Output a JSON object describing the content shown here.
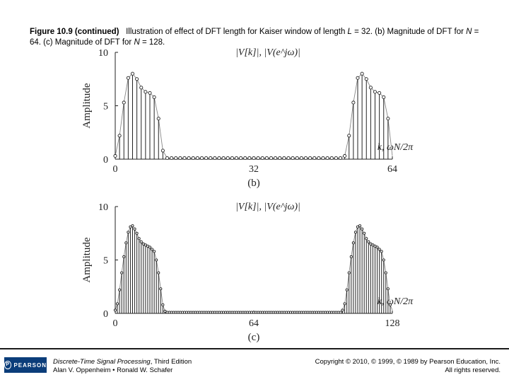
{
  "caption": {
    "label": "Figure 10.9 (continued)",
    "text_a": "Illustration of effect of DFT length for Kaiser window of length ",
    "L": "L",
    "text_b": " = 32. (b) Magnitude of DFT for ",
    "N1": "N",
    "text_c": " = 64. (c) Magnitude of DFT for ",
    "N2": "N",
    "text_d": " = 128."
  },
  "footer": {
    "logo": "PEARSON",
    "book_title": "Discrete-Time Signal Processing",
    "book_edition": ", Third Edition",
    "authors": "Alan V. Oppenheim • Ronald W. Schafer",
    "copyright": "Copyright © 2010, © 1999, © 1989 by Pearson Education, Inc.",
    "rights": "All rights reserved."
  },
  "chart_data": [
    {
      "type": "stem",
      "panel_label": "(b)",
      "legend": "|V[k]|, |V(e^jω)|",
      "xlabel": "k, ωN/2π",
      "ylabel": "Amplitude",
      "N": 64,
      "xlim": [
        0,
        64
      ],
      "ylim": [
        0,
        10
      ],
      "xticks": [
        0,
        32,
        64
      ],
      "yticks": [
        0,
        5,
        10
      ],
      "x": [
        0,
        1,
        2,
        3,
        4,
        5,
        6,
        7,
        8,
        9,
        10,
        11,
        12,
        13,
        14,
        15,
        16,
        17,
        18,
        19,
        20,
        21,
        22,
        23,
        24,
        25,
        26,
        27,
        28,
        29,
        30,
        31,
        32,
        33,
        34,
        35,
        36,
        37,
        38,
        39,
        40,
        41,
        42,
        43,
        44,
        45,
        46,
        47,
        48,
        49,
        50,
        51,
        52,
        53,
        54,
        55,
        56,
        57,
        58,
        59,
        60,
        61,
        62,
        63
      ],
      "values": [
        0.3,
        2.2,
        5.3,
        7.6,
        8.0,
        7.5,
        6.7,
        6.3,
        6.2,
        5.8,
        3.8,
        0.8,
        0.1,
        0.1,
        0.1,
        0.1,
        0.1,
        0.1,
        0.1,
        0.1,
        0.1,
        0.1,
        0.1,
        0.1,
        0.1,
        0.1,
        0.1,
        0.1,
        0.1,
        0.1,
        0.1,
        0.1,
        0.1,
        0.1,
        0.1,
        0.1,
        0.1,
        0.1,
        0.1,
        0.1,
        0.1,
        0.1,
        0.1,
        0.1,
        0.1,
        0.1,
        0.1,
        0.1,
        0.1,
        0.1,
        0.1,
        0.1,
        0.1,
        0.3,
        2.2,
        5.3,
        7.6,
        8.0,
        7.5,
        6.7,
        6.3,
        6.2,
        5.8,
        3.8
      ]
    },
    {
      "type": "stem",
      "panel_label": "(c)",
      "legend": "|V[k]|, |V(e^jω)|",
      "xlabel": "k, ωN/2π",
      "ylabel": "Amplitude",
      "N": 128,
      "xlim": [
        0,
        128
      ],
      "ylim": [
        0,
        10
      ],
      "xticks": [
        0,
        64,
        128
      ],
      "yticks": [
        0,
        5,
        10
      ],
      "x": [
        0,
        1,
        2,
        3,
        4,
        5,
        6,
        7,
        8,
        9,
        10,
        11,
        12,
        13,
        14,
        15,
        16,
        17,
        18,
        19,
        20,
        21,
        22,
        23,
        24,
        25,
        26,
        27,
        28,
        29,
        30,
        31,
        32,
        33,
        34,
        35,
        36,
        37,
        38,
        39,
        40,
        41,
        42,
        43,
        44,
        45,
        46,
        47,
        48,
        49,
        50,
        51,
        52,
        53,
        54,
        55,
        56,
        57,
        58,
        59,
        60,
        61,
        62,
        63,
        64,
        65,
        66,
        67,
        68,
        69,
        70,
        71,
        72,
        73,
        74,
        75,
        76,
        77,
        78,
        79,
        80,
        81,
        82,
        83,
        84,
        85,
        86,
        87,
        88,
        89,
        90,
        91,
        92,
        93,
        94,
        95,
        96,
        97,
        98,
        99,
        100,
        101,
        102,
        103,
        104,
        105,
        106,
        107,
        108,
        109,
        110,
        111,
        112,
        113,
        114,
        115,
        116,
        117,
        118,
        119,
        120,
        121,
        122,
        123,
        124,
        125,
        126,
        127
      ],
      "values": [
        0.3,
        0.9,
        2.2,
        3.8,
        5.3,
        6.6,
        7.6,
        8.1,
        8.2,
        7.9,
        7.5,
        7.0,
        6.7,
        6.5,
        6.4,
        6.3,
        6.2,
        6.0,
        5.8,
        5.0,
        3.8,
        2.3,
        0.8,
        0.2,
        0.1,
        0.1,
        0.1,
        0.1,
        0.1,
        0.1,
        0.1,
        0.1,
        0.1,
        0.1,
        0.1,
        0.1,
        0.1,
        0.1,
        0.1,
        0.1,
        0.1,
        0.1,
        0.1,
        0.1,
        0.1,
        0.1,
        0.1,
        0.1,
        0.1,
        0.1,
        0.1,
        0.1,
        0.1,
        0.1,
        0.1,
        0.1,
        0.1,
        0.1,
        0.1,
        0.1,
        0.1,
        0.1,
        0.1,
        0.1,
        0.1,
        0.1,
        0.1,
        0.1,
        0.1,
        0.1,
        0.1,
        0.1,
        0.1,
        0.1,
        0.1,
        0.1,
        0.1,
        0.1,
        0.1,
        0.1,
        0.1,
        0.1,
        0.1,
        0.1,
        0.1,
        0.1,
        0.1,
        0.1,
        0.1,
        0.1,
        0.1,
        0.1,
        0.1,
        0.1,
        0.1,
        0.1,
        0.1,
        0.1,
        0.1,
        0.1,
        0.1,
        0.1,
        0.1,
        0.1,
        0.1,
        0.3,
        0.9,
        2.2,
        3.8,
        5.3,
        6.6,
        7.6,
        8.1,
        8.2,
        7.9,
        7.5,
        7.0,
        6.7,
        6.5,
        6.4,
        6.3,
        6.2,
        6.0,
        5.8,
        5.0,
        3.8,
        2.3,
        0.8
      ]
    }
  ]
}
